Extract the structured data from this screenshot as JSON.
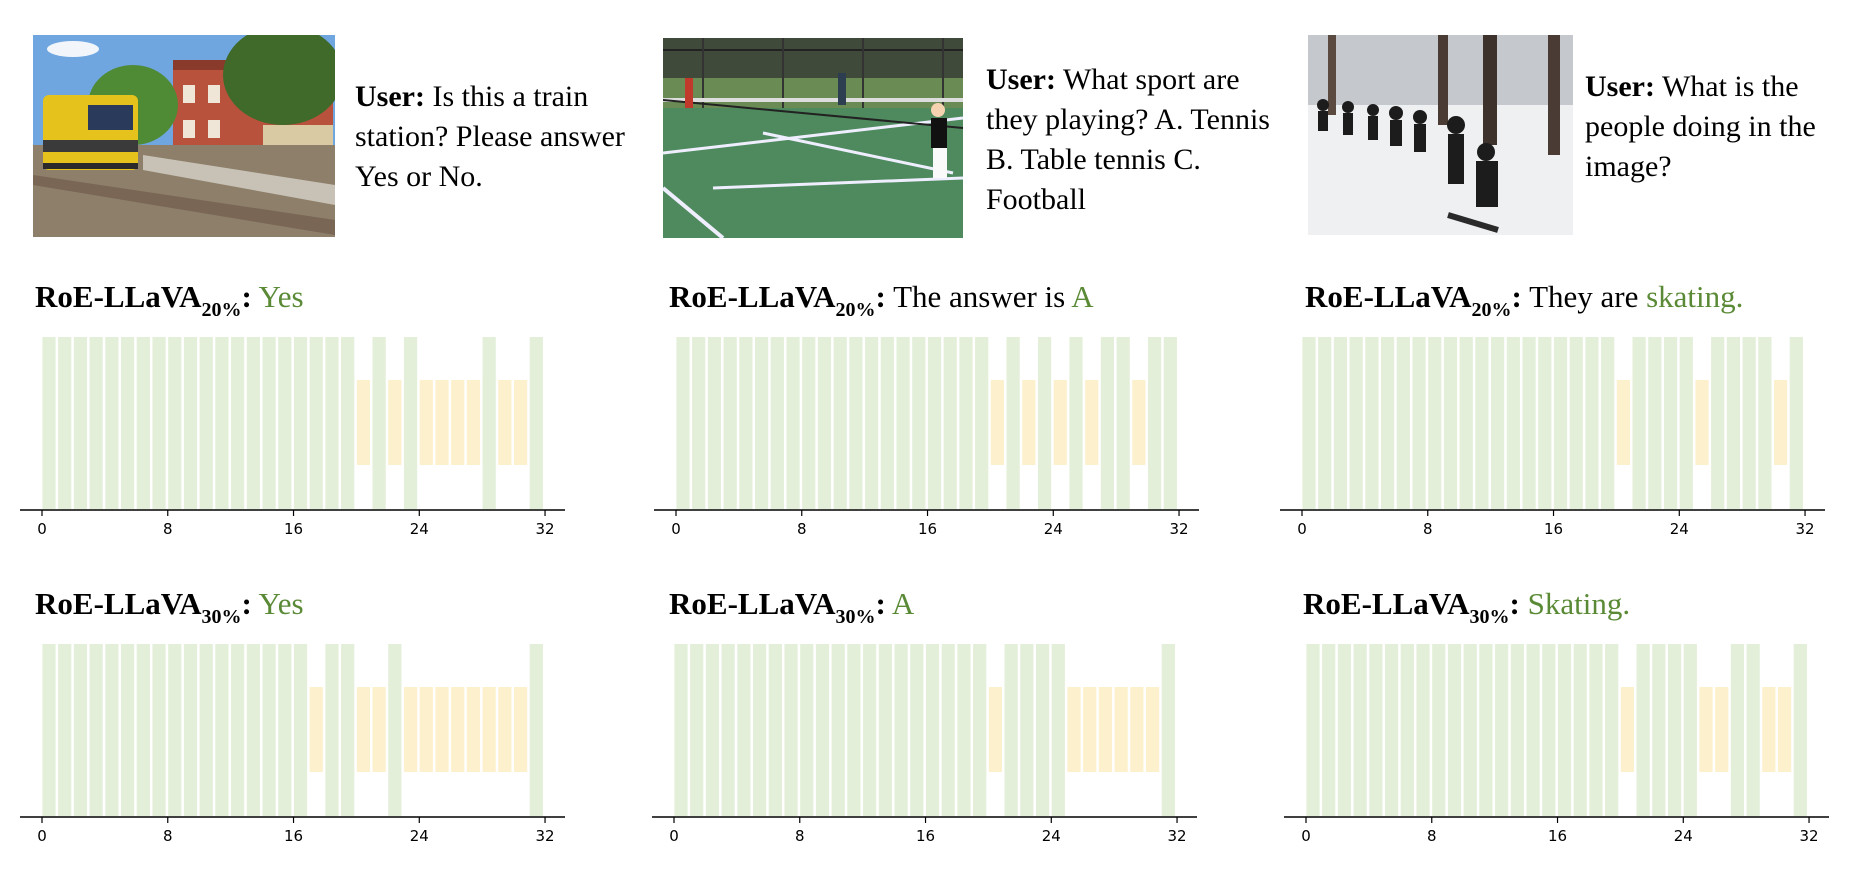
{
  "panels": [
    {
      "question_prefix": "User:",
      "question": "Is this a train station? Please answer Yes or No.",
      "image_subject": "train-station-photo",
      "rows": [
        {
          "model": "RoE-LLaVA",
          "subscript": "20%",
          "sep": ":",
          "answer_plain": "",
          "answer_highlight": "Yes"
        },
        {
          "model": "RoE-LLaVA",
          "subscript": "30%",
          "sep": ":",
          "answer_plain": "",
          "answer_highlight": "Yes"
        }
      ]
    },
    {
      "question_prefix": "User:",
      "question": "What sport are they playing? A. Tennis B. Table tennis C. Football",
      "image_subject": "tennis-court-photo",
      "rows": [
        {
          "model": "RoE-LLaVA",
          "subscript": "20%",
          "sep": ":",
          "answer_plain": "The answer is",
          "answer_highlight": "A"
        },
        {
          "model": "RoE-LLaVA",
          "subscript": "30%",
          "sep": ":",
          "answer_plain": "",
          "answer_highlight": "A"
        }
      ]
    },
    {
      "question_prefix": "User:",
      "question": "What is the people doing in the image?",
      "image_subject": "snowboarding-photo",
      "rows": [
        {
          "model": "RoE-LLaVA",
          "subscript": "20%",
          "sep": ":",
          "answer_plain": "They are",
          "answer_highlight": "skating."
        },
        {
          "model": "RoE-LLaVA",
          "subscript": "30%",
          "sep": ":",
          "answer_plain": "",
          "answer_highlight": "Skating."
        }
      ]
    }
  ],
  "colors": {
    "executed": "#e3efd8",
    "skipped": "#fdf0cc",
    "answer_highlight": "#5a8a35"
  },
  "chart_data": [
    {
      "type": "bar",
      "panel": 0,
      "ratio": "20%",
      "xticks": [
        0,
        8,
        16,
        24,
        32
      ],
      "skipped_layers": [
        20,
        22,
        24,
        25,
        26,
        27,
        29,
        30
      ],
      "categories": [
        0,
        1,
        2,
        3,
        4,
        5,
        6,
        7,
        8,
        9,
        10,
        11,
        12,
        13,
        14,
        15,
        16,
        17,
        18,
        19,
        20,
        21,
        22,
        23,
        24,
        25,
        26,
        27,
        28,
        29,
        30,
        31
      ]
    },
    {
      "type": "bar",
      "panel": 0,
      "ratio": "30%",
      "xticks": [
        0,
        8,
        16,
        24,
        32
      ],
      "skipped_layers": [
        17,
        20,
        21,
        23,
        24,
        25,
        26,
        27,
        28,
        29,
        30
      ],
      "categories": [
        0,
        1,
        2,
        3,
        4,
        5,
        6,
        7,
        8,
        9,
        10,
        11,
        12,
        13,
        14,
        15,
        16,
        17,
        18,
        19,
        20,
        21,
        22,
        23,
        24,
        25,
        26,
        27,
        28,
        29,
        30,
        31
      ]
    },
    {
      "type": "bar",
      "panel": 1,
      "ratio": "20%",
      "xticks": [
        0,
        8,
        16,
        24,
        32
      ],
      "skipped_layers": [
        20,
        22,
        24,
        26,
        29
      ],
      "categories": [
        0,
        1,
        2,
        3,
        4,
        5,
        6,
        7,
        8,
        9,
        10,
        11,
        12,
        13,
        14,
        15,
        16,
        17,
        18,
        19,
        20,
        21,
        22,
        23,
        24,
        25,
        26,
        27,
        28,
        29,
        30,
        31
      ]
    },
    {
      "type": "bar",
      "panel": 1,
      "ratio": "30%",
      "xticks": [
        0,
        8,
        16,
        24,
        32
      ],
      "skipped_layers": [
        20,
        25,
        26,
        27,
        28,
        29,
        30
      ],
      "categories": [
        0,
        1,
        2,
        3,
        4,
        5,
        6,
        7,
        8,
        9,
        10,
        11,
        12,
        13,
        14,
        15,
        16,
        17,
        18,
        19,
        20,
        21,
        22,
        23,
        24,
        25,
        26,
        27,
        28,
        29,
        30,
        31
      ]
    },
    {
      "type": "bar",
      "panel": 2,
      "ratio": "20%",
      "xticks": [
        0,
        8,
        16,
        24,
        32
      ],
      "skipped_layers": [
        20,
        25,
        30
      ],
      "categories": [
        0,
        1,
        2,
        3,
        4,
        5,
        6,
        7,
        8,
        9,
        10,
        11,
        12,
        13,
        14,
        15,
        16,
        17,
        18,
        19,
        20,
        21,
        22,
        23,
        24,
        25,
        26,
        27,
        28,
        29,
        30,
        31
      ]
    },
    {
      "type": "bar",
      "panel": 2,
      "ratio": "30%",
      "xticks": [
        0,
        8,
        16,
        24,
        32
      ],
      "skipped_layers": [
        20,
        25,
        26,
        29,
        30
      ],
      "categories": [
        0,
        1,
        2,
        3,
        4,
        5,
        6,
        7,
        8,
        9,
        10,
        11,
        12,
        13,
        14,
        15,
        16,
        17,
        18,
        19,
        20,
        21,
        22,
        23,
        24,
        25,
        26,
        27,
        28,
        29,
        30,
        31
      ]
    }
  ]
}
